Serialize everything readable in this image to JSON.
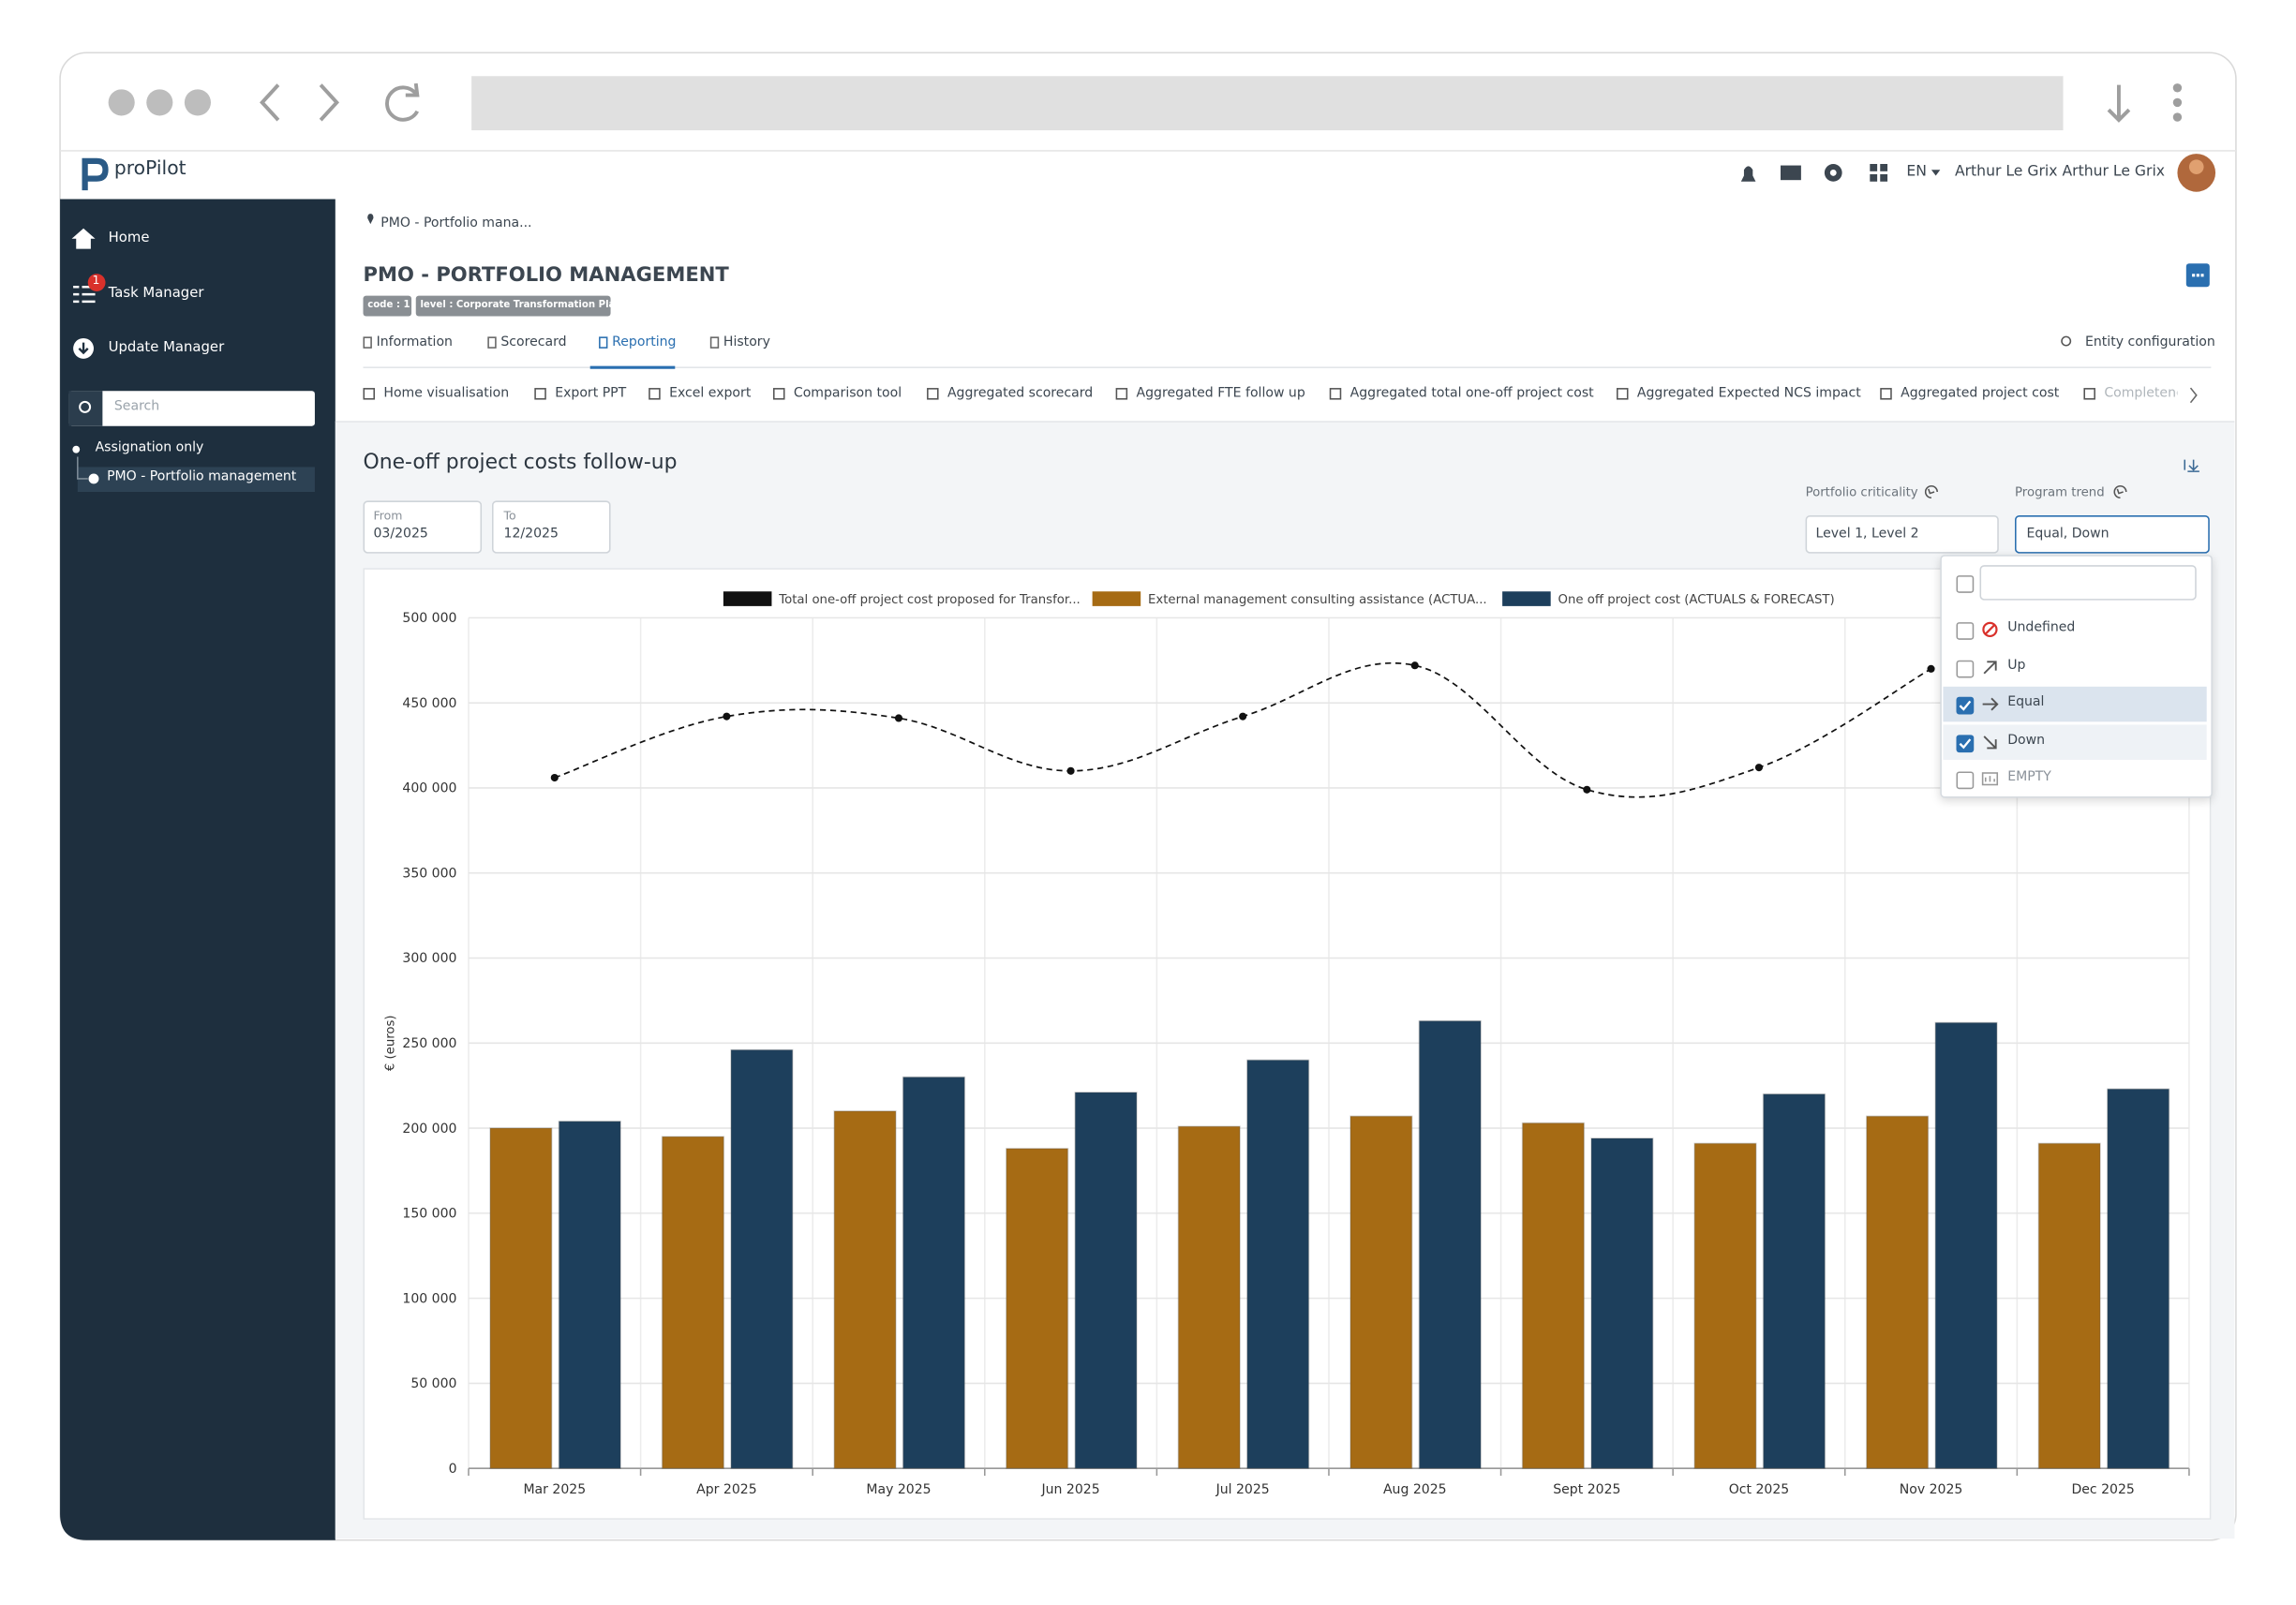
{
  "app": {
    "logo": "proPilot",
    "language": "EN",
    "user": "Arthur Le Grix Arthur Le Grix"
  },
  "sidebar": {
    "items": [
      {
        "label": "Home"
      },
      {
        "label": "Task Manager",
        "badge": "1"
      },
      {
        "label": "Update Manager"
      }
    ],
    "search_placeholder": "Search",
    "tree": [
      "Assignation only",
      "PMO - Portfolio management"
    ]
  },
  "header": {
    "breadcrumb": "PMO - Portfolio mana...",
    "title": "PMO - PORTFOLIO MANAGEMENT",
    "tags": [
      "code : 1",
      "level : Corporate Transformation Plan"
    ]
  },
  "tabs": {
    "items": [
      "Information",
      "Scorecard",
      "Reporting",
      "History"
    ],
    "active": 2,
    "entity_configuration": "Entity configuration"
  },
  "subtabs": [
    "Home visualisation",
    "Export PPT",
    "Excel export",
    "Comparison tool",
    "Aggregated scorecard",
    "Aggregated FTE follow up",
    "Aggregated total one-off project cost",
    "Aggregated Expected NCS impact",
    "Aggregated project cost",
    "Completene"
  ],
  "report": {
    "title": "One-off project costs follow-up",
    "filters": {
      "from_label": "From",
      "from": "03/2025",
      "to_label": "To",
      "to": "12/2025",
      "criticality_label": "Portfolio criticality",
      "criticality": "Level 1, Level 2",
      "trend_label": "Program trend",
      "trend": "Equal, Down"
    },
    "trend_options": [
      {
        "label": "Undefined",
        "checked": false
      },
      {
        "label": "Up",
        "checked": false
      },
      {
        "label": "Equal",
        "checked": true
      },
      {
        "label": "Down",
        "checked": true
      },
      {
        "label": "EMPTY",
        "checked": false
      }
    ]
  },
  "chart_data": {
    "type": "bar",
    "y_label": "€ (euros)",
    "categories": [
      "Mar 2025",
      "Apr 2025",
      "May 2025",
      "Jun 2025",
      "Jul 2025",
      "Aug 2025",
      "Sept 2025",
      "Oct 2025",
      "Nov 2025",
      "Dec 2025"
    ],
    "series": [
      {
        "name": "Total one-off project cost proposed for Transfor...",
        "type": "line",
        "color": "#111111",
        "values": [
          406000,
          442000,
          441000,
          410000,
          442000,
          472000,
          399000,
          412000,
          470000,
          null
        ]
      },
      {
        "name": "External management consulting assistance (ACTUA...",
        "type": "bar",
        "color": "#a66b14",
        "values": [
          200000,
          195000,
          210000,
          188000,
          201000,
          207000,
          203000,
          191000,
          207000,
          191000
        ]
      },
      {
        "name": "One off project cost (ACTUALS & FORECAST)",
        "type": "bar",
        "color": "#1d3f5c",
        "values": [
          204000,
          246000,
          230000,
          221000,
          240000,
          263000,
          194000,
          220000,
          262000,
          223000
        ]
      }
    ],
    "ylim": [
      0,
      500000
    ],
    "yticks": [
      {
        "value": 0,
        "label": "0"
      },
      {
        "value": 50000,
        "label": "50 000"
      },
      {
        "value": 100000,
        "label": "100 000"
      },
      {
        "value": 150000,
        "label": "150 000"
      },
      {
        "value": 200000,
        "label": "200 000"
      },
      {
        "value": 250000,
        "label": "250 000"
      },
      {
        "value": 300000,
        "label": "300 000"
      },
      {
        "value": 350000,
        "label": "350 000"
      },
      {
        "value": 400000,
        "label": "400 000"
      },
      {
        "value": 450000,
        "label": "450 000"
      },
      {
        "value": 500000,
        "label": "500 000"
      }
    ],
    "grid": true
  }
}
